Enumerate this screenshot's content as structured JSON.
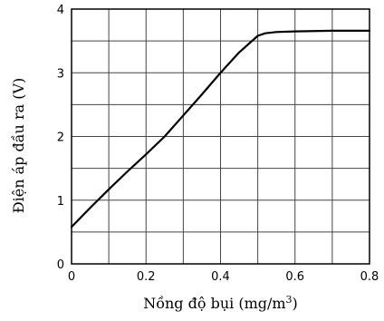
{
  "chart_data": {
    "type": "line",
    "title": "",
    "xlabel": "Nồng độ bụi (mg/m",
    "xlabel_sup": "3",
    "xlabel_suffix": ")",
    "ylabel": "Điện áp đầu ra (V)",
    "xlim": [
      0,
      0.8
    ],
    "ylim": [
      0,
      4
    ],
    "x_ticks": [
      "0",
      "0.2",
      "0.4",
      "0.6",
      "0.8"
    ],
    "y_ticks": [
      "0",
      "1",
      "2",
      "3",
      "4"
    ],
    "grid": true,
    "legend": "none",
    "series": [
      {
        "color": "#000000",
        "x": [
          0,
          0.05,
          0.1,
          0.15,
          0.2,
          0.25,
          0.3,
          0.35,
          0.4,
          0.45,
          0.5,
          0.52,
          0.55,
          0.6,
          0.7,
          0.8
        ],
        "y": [
          0.58,
          0.88,
          1.17,
          1.45,
          1.72,
          2.0,
          2.33,
          2.66,
          3.0,
          3.32,
          3.58,
          3.62,
          3.64,
          3.65,
          3.66,
          3.66
        ]
      }
    ]
  }
}
